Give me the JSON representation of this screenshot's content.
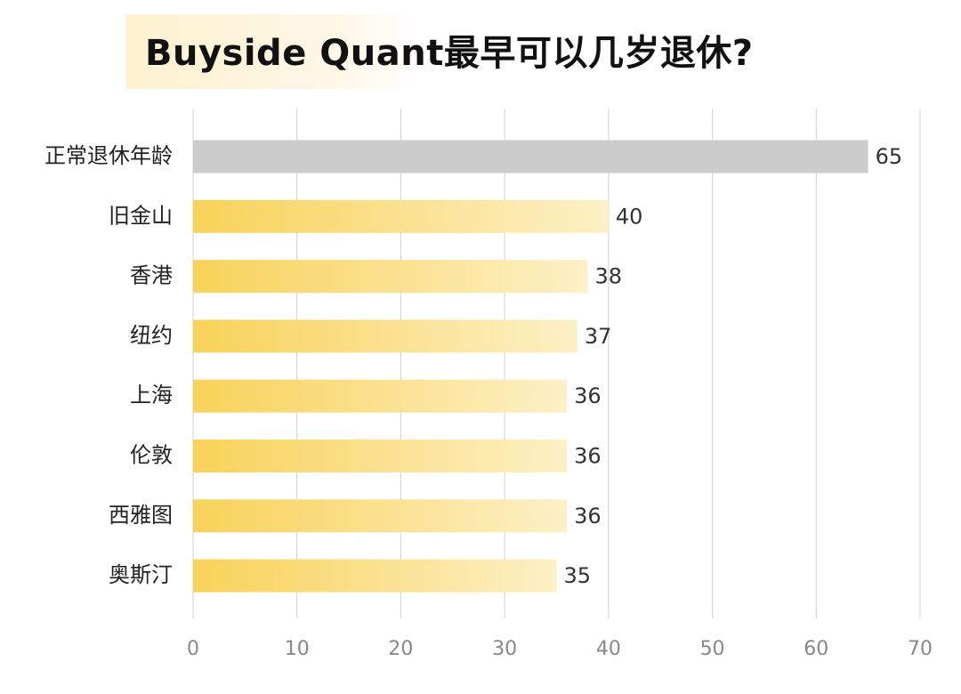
{
  "chart_data": {
    "type": "bar",
    "orientation": "horizontal",
    "title": "Buyside Quant最早可以几岁退休?",
    "categories": [
      "正常退休年龄",
      "旧金山",
      "香港",
      "纽约",
      "上海",
      "伦敦",
      "西雅图",
      "奥斯汀"
    ],
    "values": [
      65,
      40,
      38,
      37,
      36,
      36,
      36,
      35
    ],
    "data_labels": [
      "65",
      "40",
      "38",
      "37",
      "36",
      "36",
      "36",
      "35"
    ],
    "xlim": [
      0,
      70
    ],
    "xticks": [
      0,
      10,
      20,
      30,
      40,
      50,
      60,
      70
    ],
    "xtick_labels": [
      "0",
      "10",
      "20",
      "30",
      "40",
      "50",
      "60",
      "70"
    ],
    "xlabel": "",
    "ylabel": "",
    "grid": true,
    "legend": "none",
    "colors": {
      "baseline_bar": "#cccccc",
      "bar_gradient_start": "#f8d259",
      "bar_gradient_end": "#fdf0c6",
      "gridline": "#d8d8d8",
      "title_highlight": "#fdf1cf"
    }
  }
}
